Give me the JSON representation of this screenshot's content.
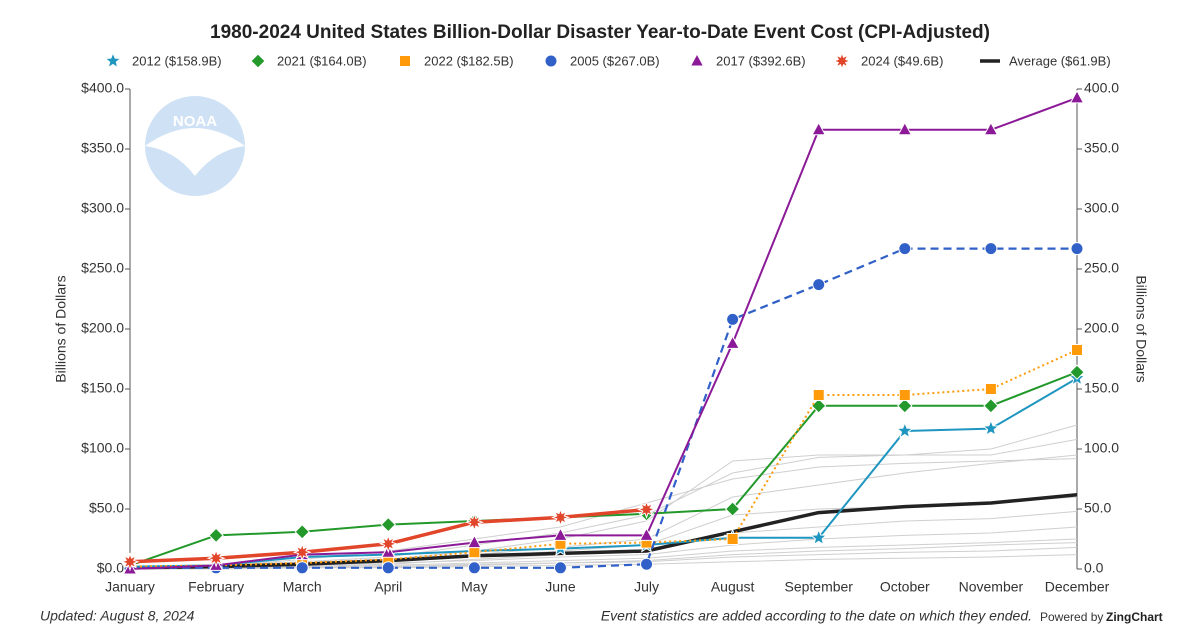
{
  "chart_data": {
    "type": "line",
    "title": "1980-2024 United States Billion-Dollar Disaster Year-to-Date Event Cost (CPI-Adjusted)",
    "y_label": "Billions of Dollars",
    "y2_label": "Billions of Dollars",
    "logo_text": "NOAA",
    "updated": "Updated: August 8, 2024",
    "note": "Event statistics are added according to the date on which they ended.",
    "powered_by": "Powered by",
    "powered_brand": "ZingChart",
    "categories": [
      "January",
      "February",
      "March",
      "April",
      "May",
      "June",
      "July",
      "August",
      "September",
      "October",
      "November",
      "December"
    ],
    "ylim": [
      0,
      400
    ],
    "yticks": [
      {
        "value": 0,
        "label": "$0.0"
      },
      {
        "value": 50,
        "label": "$50.0"
      },
      {
        "value": 100,
        "label": "$100.0"
      },
      {
        "value": 150,
        "label": "$150.0"
      },
      {
        "value": 200,
        "label": "$200.0"
      },
      {
        "value": 250,
        "label": "$250.0"
      },
      {
        "value": 300,
        "label": "$300.0"
      },
      {
        "value": 350,
        "label": "$350.0"
      },
      {
        "value": 400,
        "label": "$400.0"
      }
    ],
    "y2lim": [
      0,
      400
    ],
    "y2ticks": [
      {
        "value": 0,
        "label": "0.0"
      },
      {
        "value": 50,
        "label": "50.0"
      },
      {
        "value": 100,
        "label": "100.0"
      },
      {
        "value": 150,
        "label": "150.0"
      },
      {
        "value": 200,
        "label": "200.0"
      },
      {
        "value": 250,
        "label": "250.0"
      },
      {
        "value": 300,
        "label": "300.0"
      },
      {
        "value": 350,
        "label": "350.0"
      },
      {
        "value": 400,
        "label": "400.0"
      }
    ],
    "other_years": {
      "color": "#cfcfcf",
      "series": [
        [
          0,
          2,
          5,
          8,
          15,
          25,
          40,
          90,
          95,
          95,
          100,
          120
        ],
        [
          1,
          3,
          6,
          10,
          20,
          30,
          45,
          80,
          93,
          95,
          95,
          108
        ],
        [
          0,
          2,
          8,
          15,
          25,
          35,
          55,
          75,
          85,
          88,
          90,
          92
        ],
        [
          0,
          1,
          3,
          6,
          12,
          18,
          25,
          60,
          70,
          80,
          88,
          95
        ],
        [
          0,
          2,
          4,
          7,
          10,
          15,
          20,
          45,
          50,
          52,
          55,
          60
        ],
        [
          0,
          1,
          2,
          4,
          8,
          12,
          15,
          30,
          35,
          40,
          42,
          48
        ],
        [
          1,
          2,
          3,
          5,
          7,
          10,
          12,
          20,
          25,
          28,
          30,
          35
        ],
        [
          0,
          1,
          2,
          3,
          5,
          7,
          9,
          15,
          18,
          20,
          22,
          25
        ],
        [
          0,
          1,
          1,
          2,
          4,
          5,
          7,
          12,
          15,
          17,
          20,
          22
        ],
        [
          0,
          0,
          1,
          2,
          3,
          5,
          6,
          10,
          12,
          14,
          15,
          18
        ],
        [
          0,
          0,
          1,
          1,
          2,
          3,
          4,
          6,
          8,
          9,
          10,
          12
        ]
      ]
    },
    "series": [
      {
        "name": "2012 ($158.9B)",
        "color": "#1e96c0",
        "marker": "star",
        "line_style": "solid",
        "values": [
          2,
          3,
          10,
          12,
          15,
          17,
          20,
          26,
          26,
          115,
          117,
          158.9
        ]
      },
      {
        "name": "2021 ($164.0B)",
        "color": "#23992b",
        "marker": "diamond",
        "line_style": "solid",
        "values": [
          3,
          28,
          31,
          37,
          40,
          43,
          46,
          50,
          136,
          136,
          136,
          164.0
        ]
      },
      {
        "name": "2022 ($182.5B)",
        "color": "#ff9a0a",
        "marker": "square",
        "line_style": "dotted",
        "values": [
          2,
          3,
          5,
          8,
          14,
          21,
          22,
          25,
          145,
          145,
          150,
          182.5
        ]
      },
      {
        "name": "2005 ($267.0B)",
        "color": "#3060c8",
        "marker": "circle",
        "line_style": "dashed",
        "values": [
          1,
          1,
          1,
          1,
          1,
          1,
          4,
          208,
          237,
          267,
          267,
          267.0
        ]
      },
      {
        "name": "2017 ($392.6B)",
        "color": "#8c1a98",
        "marker": "triangle",
        "line_style": "solid",
        "values": [
          0,
          3,
          12,
          14,
          22,
          28,
          28,
          188,
          366,
          366,
          366,
          392.6
        ]
      },
      {
        "name": "2024 ($49.6B)",
        "color": "#e2462a",
        "marker": "burst",
        "line_style": "thick",
        "values": [
          6,
          9,
          14,
          21,
          39,
          43,
          49.6,
          null,
          null,
          null,
          null,
          null
        ]
      },
      {
        "name": "Average ($61.9B)",
        "color": "#222222",
        "marker": "none",
        "line_style": "thick",
        "values": [
          1,
          2,
          4,
          7,
          11,
          13,
          15,
          31,
          47,
          52,
          55,
          61.9
        ]
      }
    ]
  }
}
